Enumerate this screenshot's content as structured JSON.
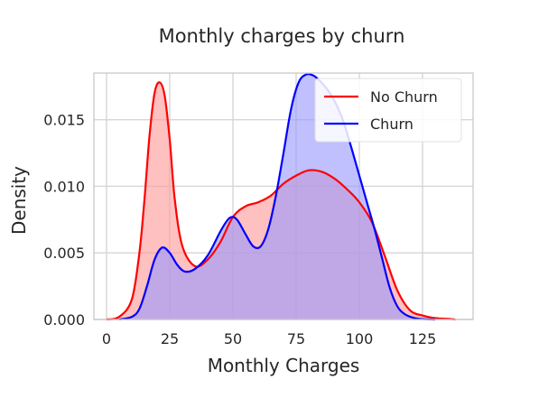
{
  "chart_data": {
    "type": "area",
    "title": "Monthly charges by churn",
    "xlabel": "Monthly Charges",
    "ylabel": "Density",
    "xlim": [
      -5,
      145
    ],
    "ylim": [
      0,
      0.0185
    ],
    "xticks": [
      "0",
      "25",
      "50",
      "75",
      "100",
      "125"
    ],
    "xtick_values": [
      0,
      25,
      50,
      75,
      100,
      125
    ],
    "yticks": [
      "0.000",
      "0.005",
      "0.010",
      "0.015"
    ],
    "ytick_values": [
      0,
      0.005,
      0.01,
      0.015
    ],
    "grid": true,
    "legend_position": "top-right",
    "series": [
      {
        "name": "No Churn",
        "color": "#ff0000",
        "fill": "#ff9999",
        "x": [
          0,
          5,
          10,
          13,
          15,
          17,
          19,
          21,
          23,
          25,
          27,
          30,
          35,
          40,
          45,
          50,
          55,
          60,
          65,
          70,
          75,
          80,
          85,
          90,
          95,
          100,
          105,
          110,
          115,
          120,
          125,
          130,
          135,
          138
        ],
        "y": [
          0.0,
          0.0002,
          0.0015,
          0.005,
          0.009,
          0.0138,
          0.017,
          0.0178,
          0.0168,
          0.0135,
          0.009,
          0.0055,
          0.004,
          0.0045,
          0.0058,
          0.0077,
          0.0085,
          0.0088,
          0.0093,
          0.0102,
          0.0108,
          0.0112,
          0.0111,
          0.0106,
          0.0098,
          0.0088,
          0.0073,
          0.0048,
          0.0022,
          0.0007,
          0.0003,
          0.0001,
          5e-05,
          0.0
        ]
      },
      {
        "name": "Churn",
        "color": "#0000ff",
        "fill": "#9999ff",
        "x": [
          5,
          10,
          13,
          16,
          19,
          22,
          25,
          28,
          31,
          35,
          40,
          45,
          48,
          50,
          52,
          55,
          58,
          61,
          64,
          67,
          70,
          73,
          76,
          79,
          82,
          85,
          88,
          91,
          94,
          97,
          100,
          103,
          106,
          109,
          112,
          115,
          118,
          122,
          126,
          130
        ],
        "y": [
          0.0,
          0.0002,
          0.0008,
          0.0025,
          0.0045,
          0.0054,
          0.005,
          0.0041,
          0.0036,
          0.0038,
          0.0048,
          0.0066,
          0.0075,
          0.0077,
          0.0074,
          0.0064,
          0.0055,
          0.0055,
          0.0068,
          0.0093,
          0.0125,
          0.0158,
          0.0178,
          0.0184,
          0.0183,
          0.0178,
          0.0171,
          0.0161,
          0.0147,
          0.0128,
          0.0108,
          0.0088,
          0.0068,
          0.0046,
          0.0024,
          0.001,
          0.0004,
          0.0001,
          2e-05,
          0.0
        ]
      }
    ]
  }
}
